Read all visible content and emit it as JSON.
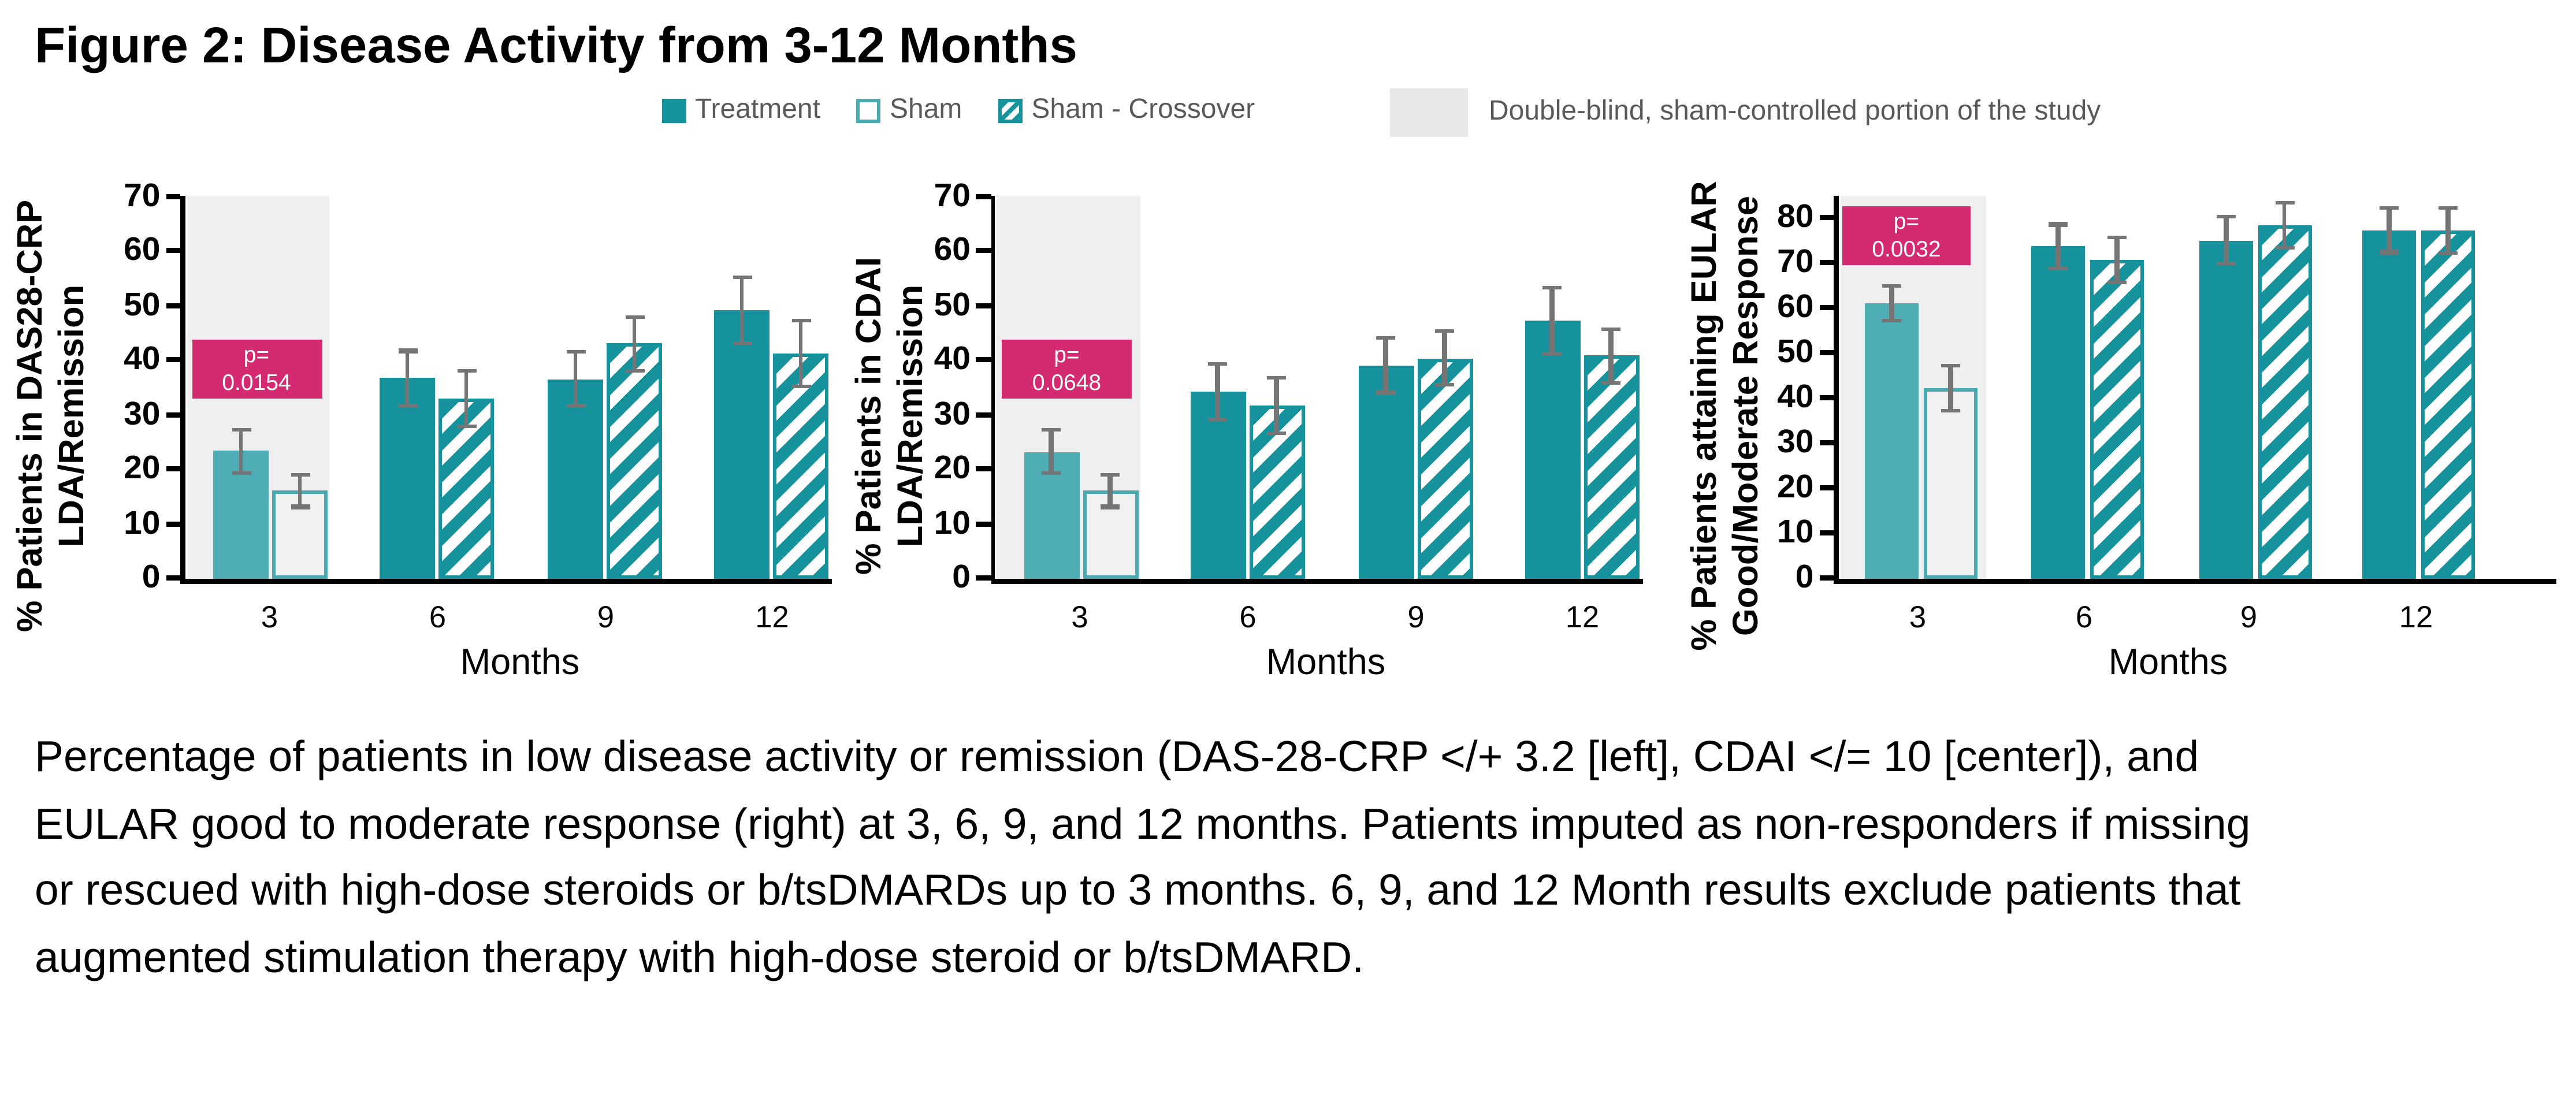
{
  "title": "Figure 2: Disease Activity from 3-12 Months",
  "legend": {
    "series": [
      {
        "label": "Treatment",
        "style": "solid"
      },
      {
        "label": "Sham",
        "style": "outline"
      },
      {
        "label": "Sham - Crossover",
        "style": "hatched"
      }
    ],
    "note": "Double-blind, sham-controlled portion of the study"
  },
  "colors": {
    "treatment": "#16929C",
    "treatment_blinded": "#4EACB4",
    "sham_fill": "#F1F1F1",
    "sham_border": "#4BA9B1",
    "band": "#EFEFEF",
    "p_box": "#D42A71",
    "p_text": "#FFFFFF",
    "error_bar": "#757575",
    "legend_box": "#E8E8E8",
    "axis": "#000000"
  },
  "caption_lines": [
    "Percentage of patients in low disease activity or remission (DAS-28-CRP </+ 3.2 [left], CDAI </= 10 [center]), and",
    "EULAR good to moderate response (right) at 3, 6, 9, and 12 months. Patients imputed as non-responders if missing",
    "or rescued with high-dose steroids or b/tsDMARDs up to 3 months. 6, 9, and 12 Month results exclude patients that",
    "augmented stimulation therapy with high-dose steroid or b/tsDMARD."
  ],
  "chart_data": [
    {
      "id": "das28-crp",
      "type": "bar",
      "ylabel_lines": [
        "% Patients in DAS28-CRP",
        "LDA/Remission"
      ],
      "xlabel": "Months",
      "categories": [
        "3",
        "6",
        "9",
        "12"
      ],
      "ylim": [
        0,
        70
      ],
      "ytick_step": 10,
      "grid": false,
      "shaded_categories": [
        "3"
      ],
      "p_annotation": {
        "label": "p=",
        "value": "0.0154"
      },
      "series": [
        {
          "name": "Treatment",
          "values": [
            23.3,
            36.7,
            36.5,
            49.2
          ],
          "errors": [
            4.0,
            5.0,
            5.0,
            6.0
          ]
        },
        {
          "name": "Sham",
          "values": [
            16.0,
            null,
            null,
            null
          ],
          "errors": [
            3.0,
            null,
            null,
            null
          ]
        },
        {
          "name": "Sham - Crossover",
          "values": [
            null,
            33.0,
            43.0,
            41.2
          ],
          "errors": [
            null,
            5.1,
            4.9,
            6.0
          ]
        }
      ]
    },
    {
      "id": "cdai",
      "type": "bar",
      "ylabel_lines": [
        "% Patients in CDAI",
        "LDA/Remission"
      ],
      "xlabel": "Months",
      "categories": [
        "3",
        "6",
        "9",
        "12"
      ],
      "ylim": [
        0,
        70
      ],
      "ytick_step": 10,
      "grid": false,
      "shaded_categories": [
        "3"
      ],
      "p_annotation": {
        "label": "p=",
        "value": "0.0648"
      },
      "series": [
        {
          "name": "Treatment",
          "values": [
            23.2,
            34.3,
            39.0,
            47.2
          ],
          "errors": [
            4.0,
            5.1,
            5.0,
            6.0
          ]
        },
        {
          "name": "Sham",
          "values": [
            16.0,
            null,
            null,
            null
          ],
          "errors": [
            3.0,
            null,
            null,
            null
          ]
        },
        {
          "name": "Sham - Crossover",
          "values": [
            null,
            31.7,
            40.4,
            40.8
          ],
          "errors": [
            null,
            5.1,
            5.0,
            5.0
          ]
        }
      ]
    },
    {
      "id": "eular",
      "type": "bar",
      "ylabel_lines": [
        "% Patients attaining EULAR",
        "Good/Moderate Response"
      ],
      "xlabel": "Months",
      "categories": [
        "3",
        "6",
        "9",
        "12"
      ],
      "ylim": [
        0,
        80
      ],
      "ytick_step": 10,
      "grid": false,
      "shaded_categories": [
        "3"
      ],
      "p_annotation": {
        "label": "p=",
        "value": "0.0032"
      },
      "series": [
        {
          "name": "Treatment",
          "values": [
            61.0,
            73.5,
            75.0,
            77.3
          ],
          "errors": [
            4.0,
            5.0,
            5.2,
            5.0
          ]
        },
        {
          "name": "Sham",
          "values": [
            42.0,
            null,
            null,
            null
          ],
          "errors": [
            5.0,
            null,
            null,
            null
          ]
        },
        {
          "name": "Sham - Crossover",
          "values": [
            null,
            70.5,
            78.3,
            77.1
          ],
          "errors": [
            null,
            5.0,
            5.0,
            5.0
          ]
        }
      ]
    }
  ]
}
